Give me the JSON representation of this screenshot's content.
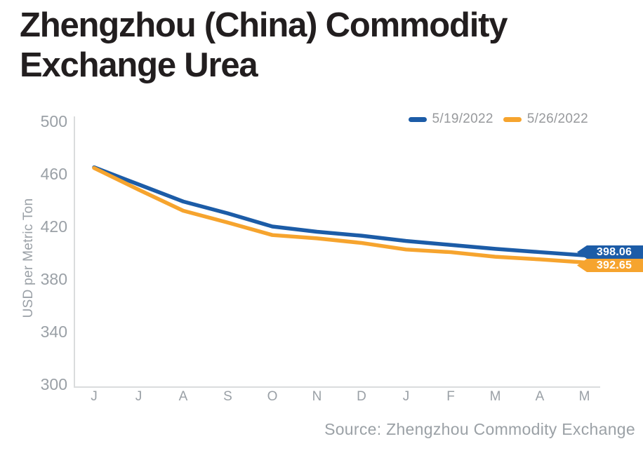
{
  "title": {
    "line1": "Zhengzhou (China) Commodity",
    "line2": "Exchange Urea"
  },
  "source": "Source: Zhengzhou Commodity Exchange",
  "chart_data": {
    "type": "line",
    "title": "Zhengzhou (China) Commodity Exchange Urea",
    "xlabel": "",
    "ylabel": "USD per Metric Ton",
    "ylim": [
      300,
      500
    ],
    "yticks": [
      500,
      460,
      420,
      380,
      340,
      300
    ],
    "categories": [
      "J",
      "J",
      "A",
      "S",
      "O",
      "N",
      "D",
      "J",
      "F",
      "M",
      "A",
      "M"
    ],
    "grid": false,
    "legend_position": "top-right",
    "axis_color": "#dadcdd",
    "tick_color": "#9aa0a6",
    "series": [
      {
        "name": "5/19/2022",
        "color": "#1c5ca7",
        "end_label": "398.06",
        "values": [
          465,
          452,
          439,
          430,
          420,
          416,
          413,
          409,
          406,
          403,
          400.5,
          398.06
        ]
      },
      {
        "name": "5/26/2022",
        "color": "#f6a42e",
        "end_label": "392.65",
        "values": [
          464.5,
          448,
          432,
          423,
          413.5,
          411,
          407.5,
          402.5,
          400.5,
          397,
          395,
          392.65
        ]
      }
    ]
  }
}
